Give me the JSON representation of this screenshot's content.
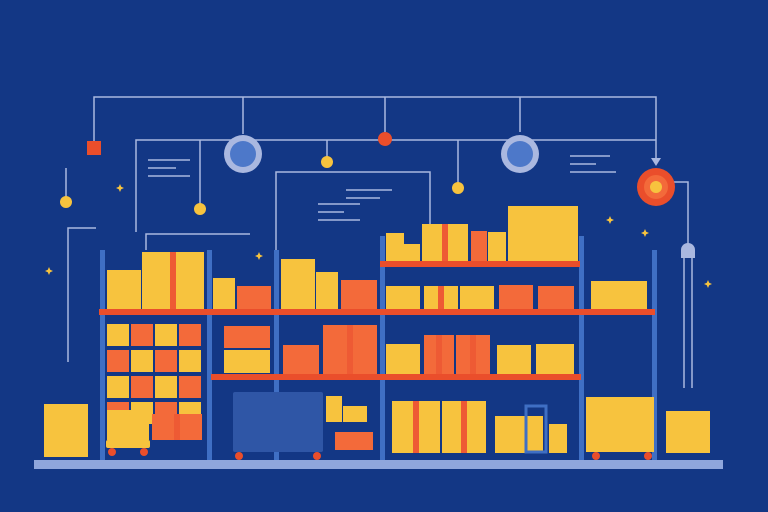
{
  "colors": {
    "background": "#133785",
    "line": "#aab8e0",
    "rack_post": "#3f6fc4",
    "shelf": "#ea4e2b",
    "box_yellow": "#f7c33e",
    "box_orange": "#f36a3a",
    "box_tape": "#ee5a34",
    "ground": "#8fa6dc",
    "node_blue": "#4d78c9",
    "node_red": "#ea4e2b",
    "node_yellow": "#f7c33e",
    "cart_blue": "#2f56a6",
    "sparkle": "#f7c33e"
  },
  "icons": {
    "network_nodes": [
      "ring-node-icon",
      "dot-node-icon",
      "square-node-icon",
      "target-node-icon",
      "arrow-down-icon"
    ],
    "sparkles": "sparkle-icon",
    "carts": "hand-cart-icon"
  }
}
